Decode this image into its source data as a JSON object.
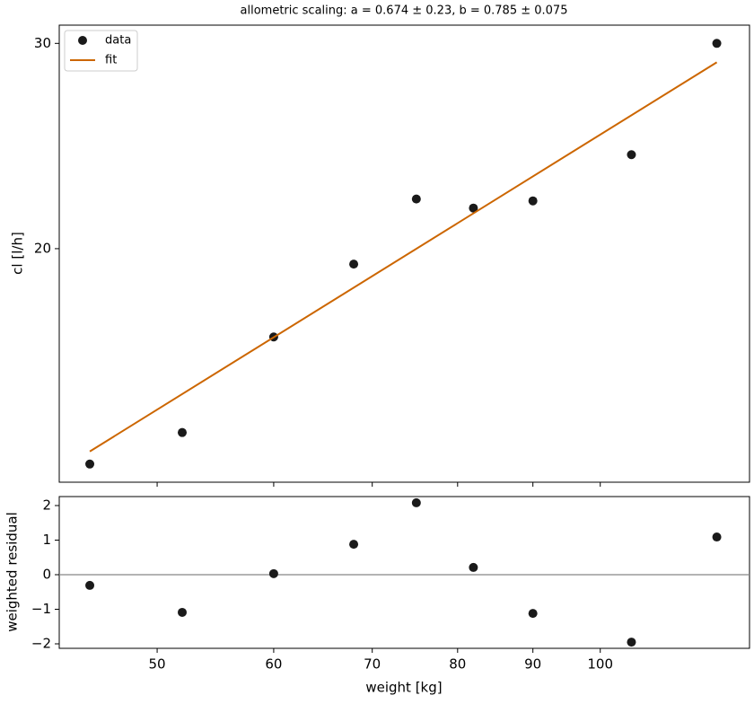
{
  "chart_data": [
    {
      "type": "scatter",
      "title": "allometric scaling: a = 0.674 ± 0.23, b = 0.785 ± 0.075",
      "ylabel": "cl [l/h]",
      "yscale": "log",
      "ylim": [
        12.61,
        31.1
      ],
      "yticks": [
        20,
        30
      ],
      "legend": "upper left",
      "series": [
        {
          "name": "data",
          "type": "scatter",
          "color": "#1a1a1a",
          "x": [
            45,
            52,
            60,
            68,
            75,
            82,
            90,
            105,
            120
          ],
          "values": [
            13.07,
            13.91,
            16.8,
            19.4,
            22.06,
            21.67,
            21.98,
            24.08,
            30
          ]
        },
        {
          "name": "fit",
          "type": "line",
          "color": "#cc6600",
          "x": [
            45,
            120
          ],
          "values": [
            13.4,
            28.9
          ]
        }
      ]
    },
    {
      "type": "scatter",
      "xlabel": "weight [kg]",
      "ylabel": "weighted residual",
      "xscale": "log",
      "xlim": [
        42.9,
        126.3
      ],
      "xticks": [
        50,
        60,
        70,
        80,
        90,
        100
      ],
      "ylim": [
        -2.13,
        2.26
      ],
      "yticks": [
        {
          "value": -2,
          "label": "−2"
        },
        {
          "value": -1,
          "label": "−1"
        },
        0,
        1,
        2
      ],
      "hlines": [
        0
      ],
      "hline_color": "#888888",
      "color": "#1a1a1a",
      "x": [
        45,
        52,
        60,
        68,
        75,
        82,
        90,
        105,
        120
      ],
      "values": [
        -0.31,
        -1.09,
        0.03,
        0.88,
        2.08,
        0.21,
        -1.12,
        -1.95,
        1.09
      ]
    }
  ]
}
